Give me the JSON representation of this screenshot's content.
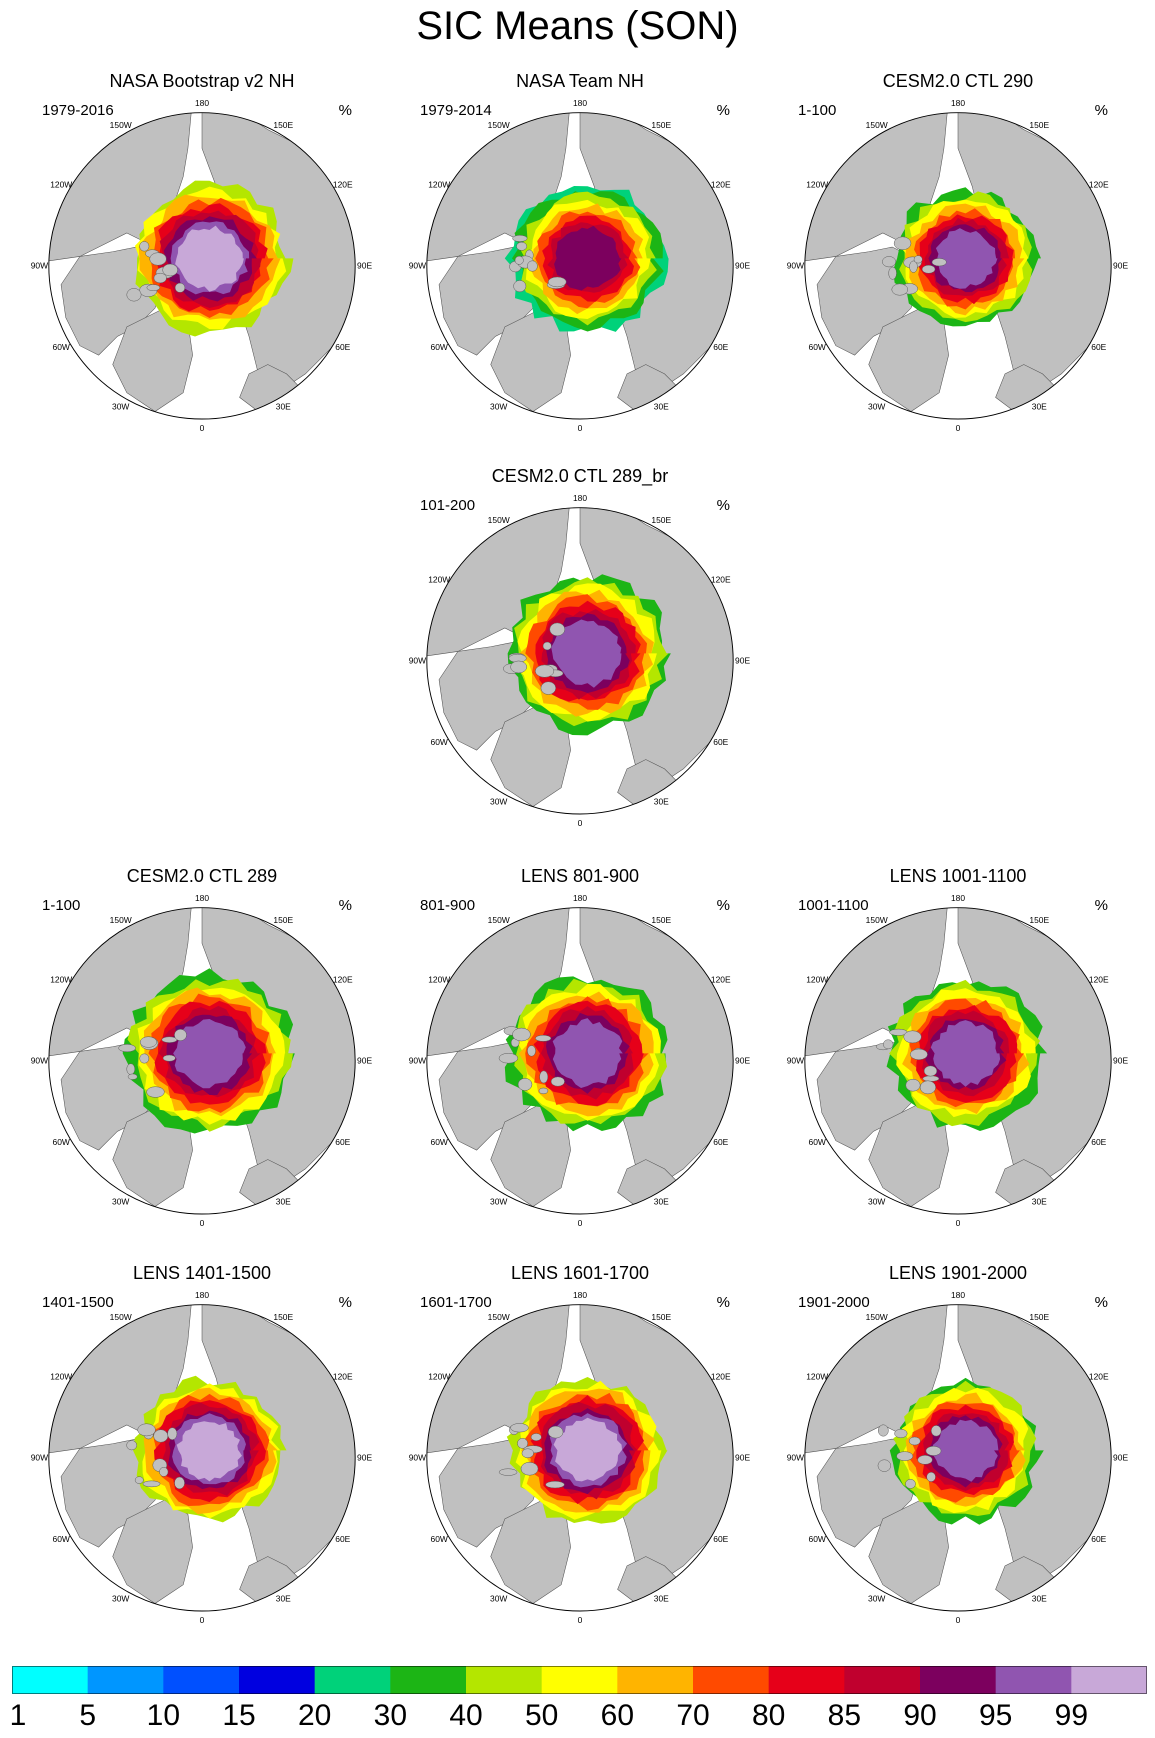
{
  "title": "SIC Means (SON)",
  "unit": "%",
  "lon_labels": [
    "180",
    "150E",
    "120E",
    "90E",
    "60E",
    "30E",
    "0",
    "30W",
    "60W",
    "90W",
    "120W",
    "150W"
  ],
  "colors": {
    "land": "#c0c0c0",
    "ocean": "#ffffff",
    "outline": "#555555"
  },
  "chart_data": {
    "type": "heatmap",
    "title": "SIC Means (SON)",
    "projection": "north polar stereographic",
    "variable": "sea ice concentration",
    "units": "%",
    "colorbar": {
      "levels": [
        1,
        5,
        10,
        15,
        20,
        30,
        40,
        50,
        60,
        70,
        80,
        85,
        90,
        95,
        99
      ],
      "colors": [
        "#00ffff",
        "#0096ff",
        "#0050ff",
        "#0000e0",
        "#00d27a",
        "#1cb515",
        "#b4e600",
        "#ffff00",
        "#ffb400",
        "#ff4a00",
        "#e60019",
        "#c0002e",
        "#7c005e",
        "#9055b0",
        "#c8a8d8"
      ]
    },
    "panels": [
      {
        "title": "NASA Bootstrap v2 NH",
        "range": "1979-2016",
        "core_level": 14,
        "extent": 1.0
      },
      {
        "title": "NASA Team NH",
        "range": "1979-2014",
        "core_level": 12,
        "extent": 1.0
      },
      {
        "title": "CESM2.0 CTL 290",
        "range": "1-100",
        "core_level": 13,
        "extent": 0.92
      },
      {
        "title": "CESM2.0 CTL 289_br",
        "range": "101-200",
        "core_level": 13,
        "extent": 1.05
      },
      {
        "title": "CESM2.0 CTL 289",
        "range": "1-100",
        "core_level": 13,
        "extent": 1.08
      },
      {
        "title": "LENS 801-900",
        "range": "801-900",
        "core_level": 13,
        "extent": 1.05
      },
      {
        "title": "LENS 1001-1100",
        "range": "1001-1100",
        "core_level": 13,
        "extent": 1.0
      },
      {
        "title": "LENS 1401-1500",
        "range": "1401-1500",
        "core_level": 14,
        "extent": 0.95
      },
      {
        "title": "LENS 1601-1700",
        "range": "1601-1700",
        "core_level": 14,
        "extent": 0.98
      },
      {
        "title": "LENS 1901-2000",
        "range": "1901-2000",
        "core_level": 13,
        "extent": 0.95
      }
    ]
  }
}
